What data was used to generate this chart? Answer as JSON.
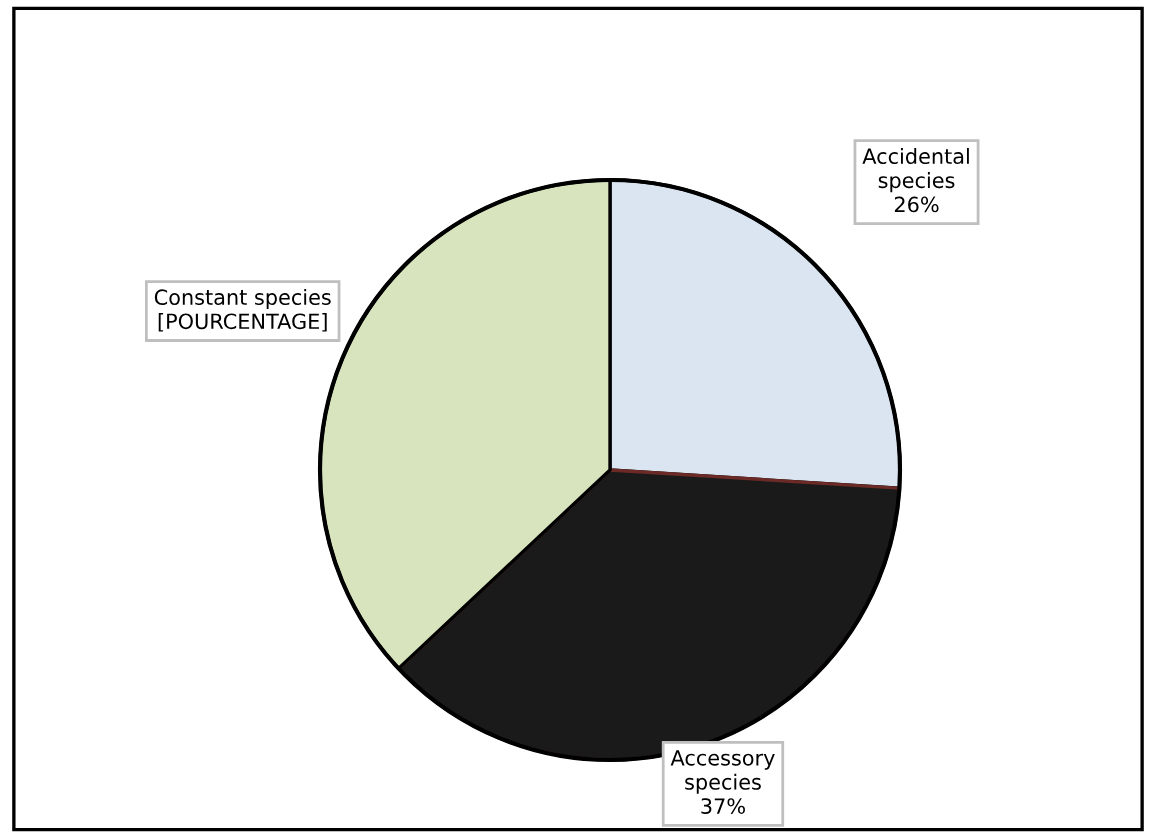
{
  "chart_data": {
    "type": "pie",
    "categories": [
      "Accidental\nspecies",
      "Accessory\nspecies",
      "Constant species"
    ],
    "values": [
      26,
      37,
      37
    ],
    "value_labels": [
      "26%",
      "37%",
      "[POURCENTAGE]"
    ],
    "colors": [
      "#dbe5f1",
      "#1a1a1a",
      "#d7e4bd"
    ]
  }
}
